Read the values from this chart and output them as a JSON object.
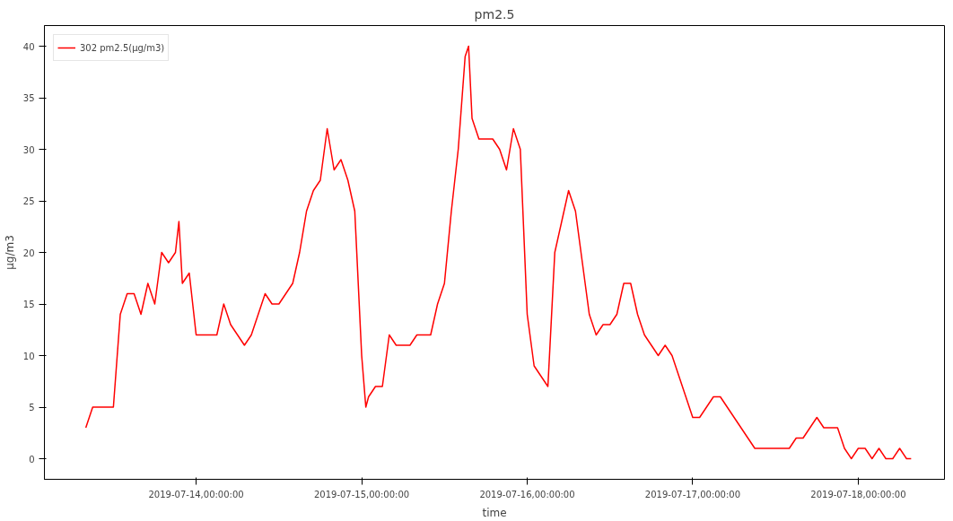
{
  "chart_data": {
    "type": "line",
    "title": "pm2.5",
    "xlabel": "time",
    "ylabel": "μg/m3",
    "xlim": [
      "2019-07-13T02:00",
      "2019-07-18T12:30"
    ],
    "ylim": [
      -2,
      42
    ],
    "xticks": [
      {
        "value": "2019-07-14T00:00",
        "label": "2019-07-14,00:00:00"
      },
      {
        "value": "2019-07-15T00:00",
        "label": "2019-07-15,00:00:00"
      },
      {
        "value": "2019-07-16T00:00",
        "label": "2019-07-16,00:00:00"
      },
      {
        "value": "2019-07-17T00:00",
        "label": "2019-07-17,00:00:00"
      },
      {
        "value": "2019-07-18T00:00",
        "label": "2019-07-18,00:00:00"
      }
    ],
    "yticks": [
      0,
      5,
      10,
      15,
      20,
      25,
      30,
      35,
      40
    ],
    "legend": "top left",
    "grid": false,
    "line_style": "solid",
    "marker": "none",
    "x": [
      "2019-07-13T08:00",
      "2019-07-13T09:00",
      "2019-07-13T10:00",
      "2019-07-13T11:00",
      "2019-07-13T12:00",
      "2019-07-13T13:00",
      "2019-07-13T14:00",
      "2019-07-13T15:00",
      "2019-07-13T16:00",
      "2019-07-13T17:00",
      "2019-07-13T18:00",
      "2019-07-13T19:00",
      "2019-07-13T20:00",
      "2019-07-13T21:00",
      "2019-07-13T21:30",
      "2019-07-13T22:00",
      "2019-07-13T23:00",
      "2019-07-14T00:00",
      "2019-07-14T01:00",
      "2019-07-14T02:00",
      "2019-07-14T03:00",
      "2019-07-14T04:00",
      "2019-07-14T05:00",
      "2019-07-14T06:00",
      "2019-07-14T07:00",
      "2019-07-14T08:00",
      "2019-07-14T09:00",
      "2019-07-14T10:00",
      "2019-07-14T11:00",
      "2019-07-14T12:00",
      "2019-07-14T13:00",
      "2019-07-14T14:00",
      "2019-07-14T15:00",
      "2019-07-14T16:00",
      "2019-07-14T17:00",
      "2019-07-14T18:00",
      "2019-07-14T19:00",
      "2019-07-14T20:00",
      "2019-07-14T21:00",
      "2019-07-14T22:00",
      "2019-07-14T23:00",
      "2019-07-15T00:00",
      "2019-07-15T00:36",
      "2019-07-15T01:00",
      "2019-07-15T02:00",
      "2019-07-15T03:00",
      "2019-07-15T04:00",
      "2019-07-15T05:00",
      "2019-07-15T06:00",
      "2019-07-15T07:00",
      "2019-07-15T08:00",
      "2019-07-15T09:00",
      "2019-07-15T10:00",
      "2019-07-15T11:00",
      "2019-07-15T12:00",
      "2019-07-15T13:00",
      "2019-07-15T14:00",
      "2019-07-15T15:00",
      "2019-07-15T15:30",
      "2019-07-15T16:00",
      "2019-07-15T17:00",
      "2019-07-15T18:00",
      "2019-07-15T19:00",
      "2019-07-15T20:00",
      "2019-07-15T21:00",
      "2019-07-15T22:00",
      "2019-07-15T23:00",
      "2019-07-16T00:00",
      "2019-07-16T01:00",
      "2019-07-16T02:00",
      "2019-07-16T03:00",
      "2019-07-16T04:00",
      "2019-07-16T05:00",
      "2019-07-16T06:00",
      "2019-07-16T07:00",
      "2019-07-16T08:00",
      "2019-07-16T09:00",
      "2019-07-16T10:00",
      "2019-07-16T11:00",
      "2019-07-16T12:00",
      "2019-07-16T13:00",
      "2019-07-16T14:00",
      "2019-07-16T15:00",
      "2019-07-16T16:00",
      "2019-07-16T17:00",
      "2019-07-16T18:00",
      "2019-07-16T19:00",
      "2019-07-16T20:00",
      "2019-07-16T21:00",
      "2019-07-16T22:00",
      "2019-07-16T23:00",
      "2019-07-17T00:00",
      "2019-07-17T01:00",
      "2019-07-17T02:00",
      "2019-07-17T03:00",
      "2019-07-17T04:00",
      "2019-07-17T05:00",
      "2019-07-17T06:00",
      "2019-07-17T07:00",
      "2019-07-17T08:00",
      "2019-07-17T09:00",
      "2019-07-17T10:00",
      "2019-07-17T11:00",
      "2019-07-17T12:00",
      "2019-07-17T13:00",
      "2019-07-17T14:00",
      "2019-07-17T15:00",
      "2019-07-17T16:00",
      "2019-07-17T17:00",
      "2019-07-17T18:00",
      "2019-07-17T19:00",
      "2019-07-17T20:00",
      "2019-07-17T21:00",
      "2019-07-17T22:00",
      "2019-07-17T23:00",
      "2019-07-18T00:00",
      "2019-07-18T01:00",
      "2019-07-18T02:00",
      "2019-07-18T03:00",
      "2019-07-18T04:00",
      "2019-07-18T05:00",
      "2019-07-18T06:00",
      "2019-07-18T07:00",
      "2019-07-18T07:40"
    ],
    "series": [
      {
        "name": "302 pm2.5(μg/m3)",
        "color": "#ff0000",
        "values": [
          3,
          5,
          5,
          5,
          5,
          14,
          16,
          16,
          14,
          17,
          15,
          20,
          19,
          20,
          23,
          17,
          18,
          12,
          12,
          12,
          12,
          15,
          13,
          12,
          11,
          12,
          14,
          16,
          15,
          15,
          16,
          17,
          20,
          24,
          26,
          27,
          32,
          28,
          29,
          27,
          24,
          10,
          5,
          6,
          7,
          7,
          12,
          11,
          11,
          11,
          12,
          12,
          12,
          15,
          17,
          24,
          30,
          39,
          40,
          33,
          31,
          31,
          31,
          30,
          28,
          32,
          30,
          14,
          9,
          8,
          7,
          20,
          23,
          26,
          24,
          19,
          14,
          12,
          13,
          13,
          14,
          17,
          17,
          14,
          12,
          11,
          10,
          11,
          10,
          8,
          6,
          4,
          4,
          5,
          6,
          6,
          5,
          4,
          3,
          2,
          1,
          1,
          1,
          1,
          1,
          1,
          2,
          2,
          3,
          4,
          3,
          3,
          3,
          1,
          0,
          1,
          1,
          0,
          1,
          0,
          0,
          1,
          0,
          0
        ]
      }
    ]
  }
}
